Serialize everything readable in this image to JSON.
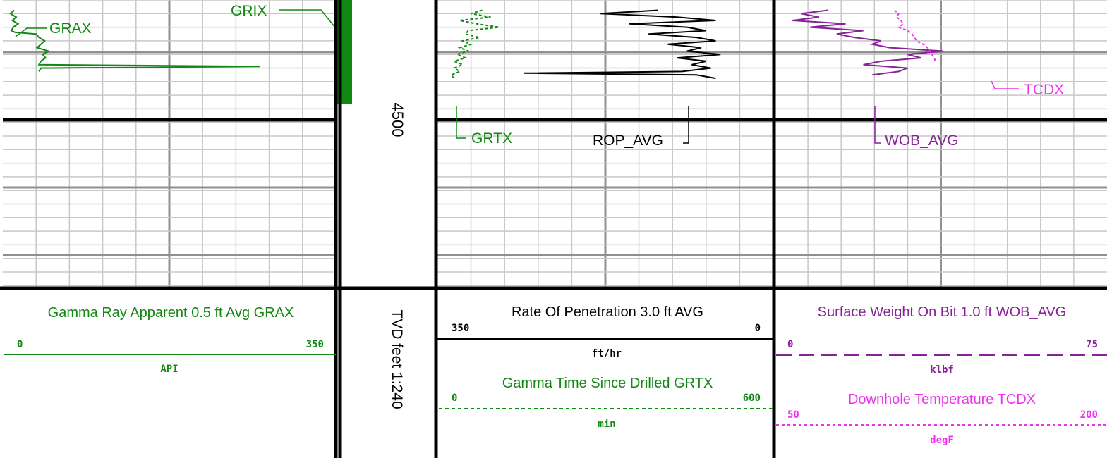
{
  "chart_data": {
    "type": "line",
    "depth_track": {
      "depth_marker": "4500",
      "scale_label": "TVD feet 1:240"
    },
    "tracks": [
      {
        "id": "gamma",
        "curves": [
          {
            "mnemonic": "GRAX",
            "title": "Gamma Ray Apparent 0.5 ft Avg GRAX",
            "scale_min": "0",
            "scale_max": "350",
            "unit": "API",
            "color": "#118811",
            "line_style": "solid",
            "x": [
              12,
              8,
              14,
              10,
              16,
              11,
              9,
              13,
              35,
              38,
              44,
              40,
              36,
              48,
              42,
              45,
              40,
              38,
              270,
              40,
              38
            ],
            "depth": [
              4475,
              4476,
              4477,
              4478,
              4479,
              4480,
              4481,
              4481.5,
              4482,
              4483,
              4484,
              4485,
              4486,
              4487,
              4488,
              4489,
              4490,
              4491,
              4491.5,
              4492,
              4493
            ]
          },
          {
            "mnemonic": "GRIX",
            "color": "#118811",
            "line_style": "solid"
          }
        ]
      },
      {
        "id": "drilling",
        "curves": [
          {
            "mnemonic": "ROP_AVG",
            "title": "Rate Of Penetration 3.0 ft AVG",
            "scale_min": "350",
            "scale_max": "0",
            "unit": "ft/hr",
            "color": "#000000",
            "line_style": "solid",
            "x": [
              120,
              180,
              100,
              60,
              150,
              90,
              70,
              130,
              80,
              60,
              110,
              75,
              90,
              55,
              100,
              70,
              85,
              65,
              95,
              260,
              80,
              60
            ],
            "depth": [
              4475,
              4476,
              4477,
              4478,
              4479,
              4480,
              4481,
              4482,
              4483,
              4484,
              4485,
              4486,
              4487,
              4488,
              4489,
              4490,
              4491,
              4492,
              4493,
              4493.5,
              4494,
              4495
            ]
          },
          {
            "mnemonic": "GRTX",
            "title": "Gamma Time Since Drilled GRTX",
            "scale_min": "0",
            "scale_max": "600",
            "unit": "min",
            "color": "#118811",
            "line_style": "dashed",
            "x": [
              80,
              60,
              95,
              40,
              70,
              110,
              55,
              50,
              75,
              45,
              60,
              40,
              55,
              35,
              50,
              30,
              45,
              30,
              40,
              25,
              30
            ],
            "depth": [
              4475,
              4476,
              4477,
              4478,
              4479,
              4480,
              4481,
              4482,
              4483,
              4484,
              4485,
              4486,
              4487,
              4488,
              4489,
              4490,
              4491,
              4492,
              4493,
              4494,
              4495
            ]
          }
        ]
      },
      {
        "id": "wob_temp",
        "curves": [
          {
            "mnemonic": "WOB_AVG",
            "title": "Surface Weight On Bit 1.0 ft WOB_AVG",
            "scale_min": "0",
            "scale_max": "75",
            "unit": "klbf",
            "color": "#882299",
            "line_style": "solid",
            "x": [
              12,
              6,
              10,
              4,
              16,
              8,
              20,
              14,
              18,
              24,
              22,
              26,
              38,
              30,
              33,
              24,
              20,
              30,
              28,
              22
            ],
            "depth": [
              4475,
              4476,
              4477,
              4478,
              4479,
              4480,
              4481,
              4482,
              4483,
              4484,
              4485,
              4486,
              4487,
              4488,
              4489,
              4490,
              4491,
              4492,
              4493,
              4494
            ]
          },
          {
            "mnemonic": "TCDX",
            "title": "Downhole Temperature TCDX",
            "scale_min": "50",
            "scale_max": "200",
            "unit": "degF",
            "color": "#ee33ee",
            "line_style": "dashed",
            "x": [
              104,
              106,
              105,
              107,
              108,
              106,
              110,
              112,
              113,
              114,
              117,
              119,
              120,
              121,
              122,
              122.5
            ],
            "depth": [
              4475,
              4476,
              4477,
              4478,
              4479,
              4480,
              4481,
              4482,
              4483,
              4484,
              4485,
              4486,
              4487,
              4488,
              4489,
              4490
            ]
          }
        ]
      }
    ],
    "grid": true
  }
}
